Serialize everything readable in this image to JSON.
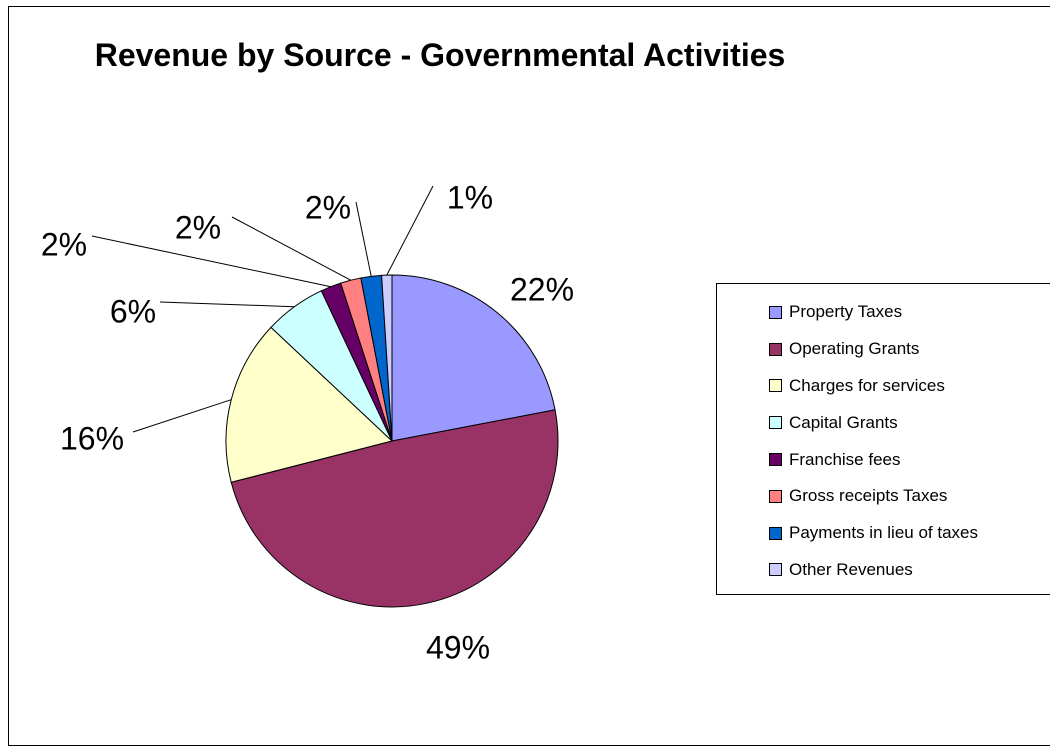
{
  "chart_data": {
    "type": "pie",
    "title": "Revenue by Source - Governmental Activities",
    "categories": [
      "Property Taxes",
      "Operating Grants",
      "Charges for services",
      "Capital Grants",
      "Franchise fees",
      "Gross receipts Taxes",
      "Payments in lieu of taxes",
      "Other Revenues"
    ],
    "values": [
      22,
      49,
      16,
      6,
      2,
      2,
      2,
      1
    ],
    "data_labels": [
      "22%",
      "49%",
      "16%",
      "6%",
      "2%",
      "2%",
      "2%",
      "1%"
    ],
    "colors": [
      "#9999FF",
      "#993366",
      "#FFFFCC",
      "#CCFFFF",
      "#660066",
      "#FF8080",
      "#0066CC",
      "#CCCCFF"
    ],
    "legend_position": "right"
  }
}
